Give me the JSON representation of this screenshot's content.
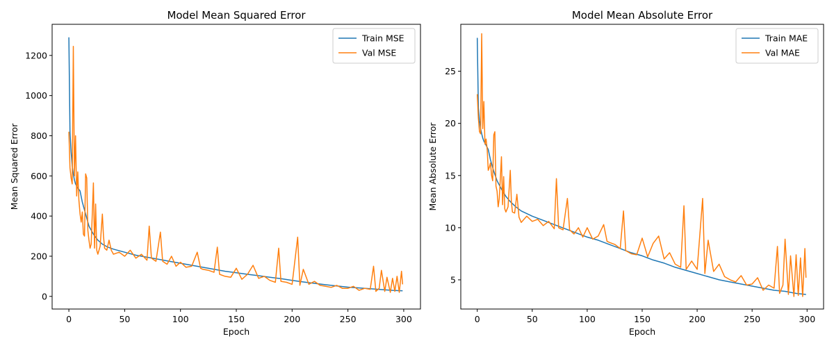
{
  "colors": {
    "train": "#1f77b4",
    "val": "#ff7f0e",
    "axis": "#000000",
    "legend_border": "#cccccc"
  },
  "chart_data": [
    {
      "type": "line",
      "title": "Model Mean Squared Error",
      "xlabel": "Epoch",
      "ylabel": "Mean Squared Error",
      "xlim": [
        -15,
        315
      ],
      "ylim": [
        -63,
        1355
      ],
      "xticks": [
        0,
        50,
        100,
        150,
        200,
        250,
        300
      ],
      "yticks": [
        0,
        200,
        400,
        600,
        800,
        1000,
        1200
      ],
      "legend": "top-right",
      "grid": false,
      "series": [
        {
          "name": "Train MSE",
          "x": [
            0,
            1,
            2,
            3,
            4,
            5,
            6,
            8,
            10,
            12,
            15,
            18,
            22,
            26,
            30,
            35,
            40,
            50,
            60,
            70,
            80,
            90,
            100,
            110,
            120,
            130,
            140,
            150,
            160,
            170,
            180,
            190,
            200,
            210,
            220,
            230,
            240,
            250,
            260,
            270,
            280,
            290,
            299
          ],
          "values": [
            1290,
            820,
            720,
            650,
            610,
            580,
            560,
            540,
            525,
            470,
            410,
            350,
            310,
            280,
            260,
            245,
            235,
            220,
            205,
            195,
            185,
            175,
            165,
            155,
            145,
            135,
            125,
            118,
            110,
            103,
            95,
            88,
            80,
            72,
            65,
            58,
            52,
            46,
            42,
            38,
            34,
            30,
            28
          ]
        },
        {
          "name": "Val MSE",
          "x": [
            0,
            1,
            2,
            3,
            4,
            5,
            6,
            7,
            8,
            9,
            10,
            11,
            12,
            13,
            14,
            15,
            16,
            17,
            18,
            19,
            20,
            22,
            23,
            24,
            25,
            26,
            28,
            30,
            31,
            32,
            34,
            36,
            38,
            40,
            45,
            50,
            55,
            60,
            65,
            70,
            72,
            74,
            78,
            82,
            84,
            88,
            92,
            96,
            100,
            105,
            110,
            115,
            118,
            120,
            125,
            130,
            133,
            135,
            140,
            145,
            150,
            155,
            160,
            165,
            170,
            175,
            180,
            185,
            188,
            190,
            195,
            200,
            205,
            207,
            210,
            215,
            220,
            225,
            230,
            235,
            240,
            245,
            250,
            255,
            260,
            265,
            270,
            273,
            275,
            278,
            280,
            283,
            285,
            288,
            290,
            292,
            294,
            296,
            298,
            299
          ],
          "values": [
            820,
            640,
            590,
            560,
            1245,
            600,
            800,
            500,
            620,
            480,
            410,
            370,
            420,
            310,
            300,
            610,
            590,
            330,
            280,
            240,
            260,
            565,
            240,
            460,
            230,
            210,
            250,
            410,
            300,
            240,
            230,
            280,
            230,
            210,
            220,
            200,
            230,
            190,
            210,
            180,
            350,
            190,
            175,
            320,
            175,
            160,
            200,
            150,
            170,
            145,
            150,
            220,
            140,
            135,
            130,
            120,
            245,
            110,
            100,
            95,
            140,
            85,
            110,
            155,
            90,
            100,
            80,
            70,
            240,
            75,
            70,
            60,
            295,
            55,
            135,
            60,
            75,
            55,
            50,
            45,
            55,
            40,
            40,
            50,
            30,
            40,
            35,
            150,
            25,
            40,
            130,
            25,
            95,
            20,
            90,
            25,
            100,
            20,
            125,
            60
          ]
        }
      ]
    },
    {
      "type": "line",
      "title": "Model Mean Absolute Error",
      "xlabel": "Epoch",
      "ylabel": "Mean Absolute Error",
      "xlim": [
        -15,
        315
      ],
      "ylim": [
        2.2,
        29.5
      ],
      "xticks": [
        0,
        50,
        100,
        150,
        200,
        250,
        300
      ],
      "yticks": [
        5,
        10,
        15,
        20,
        25
      ],
      "legend": "top-right",
      "grid": false,
      "series": [
        {
          "name": "Train MAE",
          "x": [
            0,
            1,
            2,
            3,
            4,
            5,
            6,
            8,
            10,
            12,
            15,
            18,
            22,
            26,
            30,
            35,
            40,
            50,
            60,
            70,
            80,
            90,
            100,
            110,
            120,
            130,
            140,
            150,
            160,
            170,
            180,
            190,
            200,
            210,
            220,
            230,
            240,
            250,
            260,
            270,
            280,
            290,
            299
          ],
          "values": [
            28.2,
            21.5,
            20.3,
            19.5,
            19.0,
            18.6,
            18.3,
            17.9,
            17.5,
            16.5,
            15.4,
            14.5,
            13.7,
            13.0,
            12.5,
            12.0,
            11.6,
            11.1,
            10.7,
            10.3,
            9.9,
            9.5,
            9.1,
            8.8,
            8.4,
            8.0,
            7.6,
            7.3,
            6.9,
            6.6,
            6.2,
            5.9,
            5.6,
            5.3,
            5.0,
            4.8,
            4.6,
            4.4,
            4.2,
            4.0,
            3.9,
            3.7,
            3.6
          ]
        },
        {
          "name": "Val MAE",
          "x": [
            0,
            1,
            2,
            3,
            4,
            5,
            6,
            7,
            8,
            9,
            10,
            11,
            12,
            13,
            14,
            15,
            16,
            17,
            18,
            19,
            20,
            22,
            23,
            24,
            25,
            26,
            28,
            30,
            31,
            32,
            34,
            36,
            38,
            40,
            45,
            50,
            55,
            60,
            65,
            70,
            72,
            74,
            78,
            82,
            84,
            88,
            92,
            96,
            100,
            105,
            110,
            115,
            118,
            120,
            125,
            130,
            133,
            135,
            140,
            145,
            150,
            155,
            160,
            165,
            170,
            175,
            180,
            185,
            188,
            190,
            195,
            200,
            205,
            207,
            210,
            215,
            220,
            225,
            230,
            235,
            240,
            245,
            250,
            255,
            260,
            265,
            270,
            273,
            275,
            278,
            280,
            283,
            285,
            288,
            290,
            292,
            294,
            296,
            298,
            299
          ],
          "values": [
            22.8,
            20.5,
            19.2,
            19.0,
            28.6,
            19.5,
            22.1,
            18.0,
            18.5,
            17.5,
            15.5,
            15.8,
            16.2,
            15.0,
            14.5,
            18.9,
            19.2,
            14.0,
            13.5,
            12.0,
            12.8,
            16.8,
            12.2,
            14.9,
            11.8,
            11.5,
            12.0,
            15.5,
            12.5,
            11.5,
            11.4,
            13.2,
            11.0,
            10.5,
            11.1,
            10.6,
            10.8,
            10.2,
            10.6,
            9.9,
            14.7,
            10.0,
            9.8,
            12.8,
            9.8,
            9.4,
            10.0,
            9.1,
            10.0,
            8.9,
            9.2,
            10.3,
            8.7,
            8.6,
            8.4,
            8.0,
            11.6,
            7.8,
            7.5,
            7.4,
            9.0,
            7.2,
            8.5,
            9.2,
            7.0,
            7.6,
            6.5,
            6.2,
            12.1,
            6.0,
            6.8,
            6.0,
            12.8,
            5.6,
            8.8,
            5.8,
            6.5,
            5.3,
            5.0,
            4.8,
            5.4,
            4.5,
            4.6,
            5.2,
            4.0,
            4.5,
            4.2,
            8.2,
            3.7,
            4.5,
            8.9,
            3.6,
            7.3,
            3.4,
            7.4,
            3.5,
            7.1,
            3.4,
            8.0,
            5.2
          ]
        }
      ]
    }
  ]
}
